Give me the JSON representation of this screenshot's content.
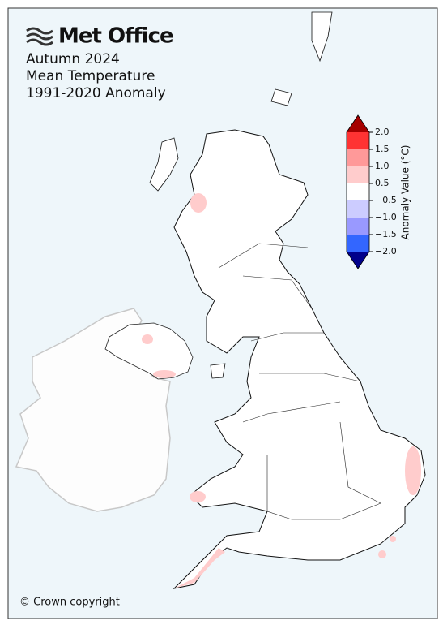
{
  "header": {
    "logo": "Met Office",
    "title_lines": [
      "Autumn 2024",
      "Mean Temperature",
      "1991-2020 Anomaly"
    ]
  },
  "colorbar": {
    "label": "Anomaly Value (°C)",
    "ticks": [
      {
        "value": 2,
        "label": "2.0"
      },
      {
        "value": 1.5,
        "label": "1.5"
      },
      {
        "value": 1,
        "label": "1.0"
      },
      {
        "value": 0.5,
        "label": "0.5"
      },
      {
        "value": -0.5,
        "label": "−0.5"
      },
      {
        "value": -1,
        "label": "−1.0"
      },
      {
        "value": -1.5,
        "label": "−1.5"
      },
      {
        "value": -2,
        "label": "−2.0"
      }
    ],
    "colors": [
      "#ff3333",
      "#ff9999",
      "#ffcccc",
      "#ffffff",
      "#ccccff",
      "#9999ff",
      "#3366ff"
    ],
    "over_color": "#a50000",
    "under_color": "#00008b"
  },
  "footer": {
    "copyright": "© Crown copyright"
  }
}
